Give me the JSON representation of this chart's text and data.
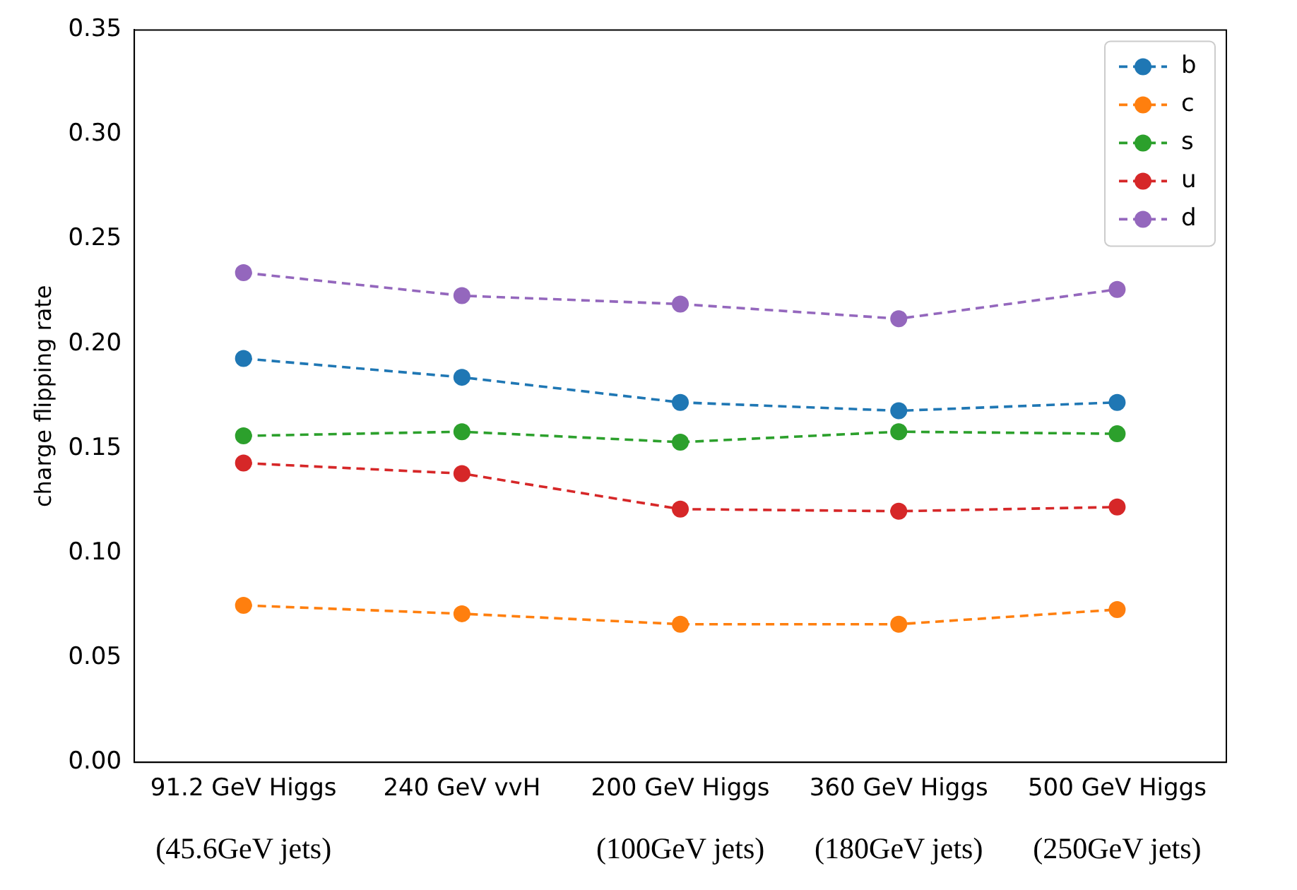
{
  "chart_data": {
    "type": "line",
    "ylabel": "charge flipping rate",
    "categories": [
      "91.2 GeV Higgs\n(45.6GeV jets)",
      "240 GeV vvH",
      "200 GeV Higgs\n(100GeV jets)",
      "360 GeV Higgs\n(180GeV jets)",
      "500 GeV Higgs\n(250GeV jets)"
    ],
    "series": [
      {
        "name": "b",
        "color": "#1f77b4",
        "values": [
          0.193,
          0.184,
          0.172,
          0.168,
          0.172
        ]
      },
      {
        "name": "c",
        "color": "#ff7f0e",
        "values": [
          0.075,
          0.071,
          0.066,
          0.066,
          0.073
        ]
      },
      {
        "name": "s",
        "color": "#2ca02c",
        "values": [
          0.156,
          0.158,
          0.153,
          0.158,
          0.157
        ]
      },
      {
        "name": "u",
        "color": "#d62728",
        "values": [
          0.143,
          0.138,
          0.121,
          0.12,
          0.122
        ]
      },
      {
        "name": "d",
        "color": "#9467bd",
        "values": [
          0.234,
          0.223,
          0.219,
          0.212,
          0.226
        ]
      }
    ],
    "ylim": [
      0,
      0.35
    ],
    "yticks": [
      {
        "value": 0,
        "label": "0.00"
      },
      {
        "value": 0.05,
        "label": "0.05"
      },
      {
        "value": 0.1,
        "label": "0.10"
      },
      {
        "value": 0.15,
        "label": "0.15"
      },
      {
        "value": 0.2,
        "label": "0.20"
      },
      {
        "value": 0.25,
        "label": "0.25"
      },
      {
        "value": 0.3,
        "label": "0.30"
      },
      {
        "value": 0.35,
        "label": "0.35"
      }
    ],
    "grid": false,
    "legend": "top right",
    "marker": "circle",
    "line_style": "dashed"
  }
}
